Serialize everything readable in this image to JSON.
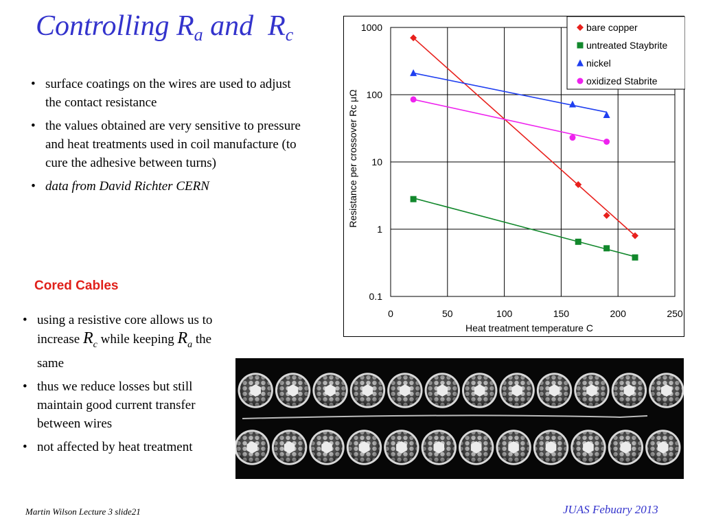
{
  "slide": {
    "title_main": "Controlling R",
    "title_sub_a": "a",
    "title_and": "and",
    "title_sub_c": "c"
  },
  "top_bullets": [
    "surface coatings on the wires are used to adjust the contact resistance",
    "the values obtained are very sensitive to pressure and heat treatments used in coil manufacture (to cure the adhesive between turns)",
    "data from David Richter CERN"
  ],
  "cored_heading": "Cored Cables",
  "bottom_bullets": {
    "b1_pre": "using a resistive core allows us to increase",
    "b1_r": "R",
    "b1_r_sub": "c",
    "b1_mid": "while keeping",
    "b1_r2": "R",
    "b1_r2_sub": "a",
    "b1_post": "the same",
    "b2": "thus we reduce losses but still maintain good current transfer between wires",
    "b3": "not affected by heat treatment"
  },
  "footer": {
    "left": "Martin Wilson Lecture 3 slide21",
    "right": "JUAS Febuary 2013"
  },
  "photo": {
    "icon": "cored-cable-cross-section-photo",
    "strand_rows": 2,
    "strands_per_row": 12
  },
  "chart_data": {
    "type": "scatter",
    "title": "",
    "xlabel": "Heat treatment temperature C",
    "ylabel": "Resistance per crossover Rc μΩ",
    "xlim": [
      0,
      250
    ],
    "ylim": [
      0.1,
      1000
    ],
    "yscale": "log",
    "x_ticks": [
      "0",
      "50",
      "100",
      "150",
      "200",
      "250"
    ],
    "y_ticks": [
      "0.1",
      "1",
      "10",
      "100",
      "1000"
    ],
    "grid": true,
    "legend_position": "top-right",
    "series": [
      {
        "name": "bare copper",
        "color": "#e8201c",
        "marker": "diamond",
        "x": [
          20,
          165,
          190,
          215
        ],
        "y": [
          700,
          4.6,
          1.6,
          0.8
        ],
        "fit": [
          [
            20,
            700
          ],
          [
            215,
            0.8
          ]
        ]
      },
      {
        "name": "untreated Staybrite",
        "color": "#12882c",
        "marker": "square",
        "x": [
          20,
          165,
          190,
          215
        ],
        "y": [
          2.8,
          0.65,
          0.52,
          0.38
        ],
        "fit": [
          [
            20,
            2.9
          ],
          [
            215,
            0.39
          ]
        ]
      },
      {
        "name": "nickel",
        "color": "#1f3ff0",
        "marker": "triangle",
        "x": [
          20,
          160,
          190
        ],
        "y": [
          210,
          72,
          50
        ],
        "fit": [
          [
            20,
            210
          ],
          [
            190,
            55
          ]
        ]
      },
      {
        "name": "oxidized Stabrite",
        "color": "#ee22ee",
        "marker": "circle",
        "x": [
          20,
          160,
          190
        ],
        "y": [
          85,
          23,
          20
        ],
        "fit": [
          [
            20,
            85
          ],
          [
            190,
            20
          ]
        ]
      }
    ]
  }
}
